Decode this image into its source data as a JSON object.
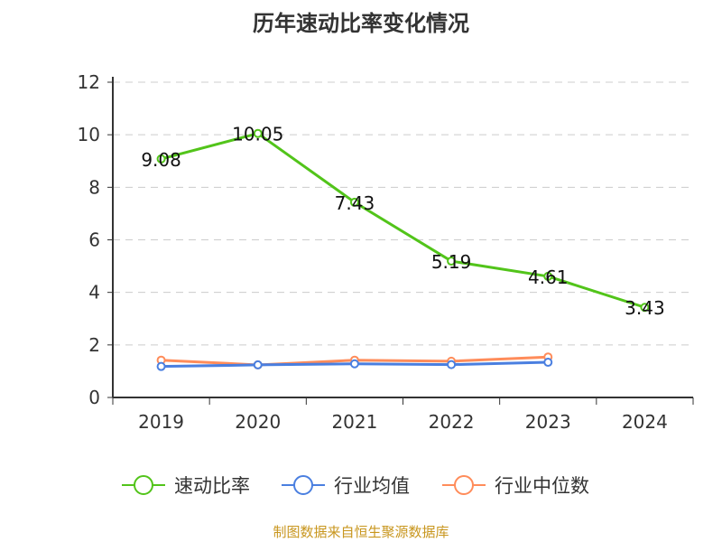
{
  "chart_data": {
    "type": "line",
    "title": "历年速动比率变化情况",
    "categories": [
      "2019",
      "2020",
      "2021",
      "2022",
      "2023",
      "2024"
    ],
    "ylim": [
      0,
      12
    ],
    "yticks": [
      0,
      2,
      4,
      6,
      8,
      10,
      12
    ],
    "grid": true,
    "legend_placement": "bottom",
    "series": [
      {
        "name": "速动比率",
        "color": "#52c41a",
        "values": [
          9.08,
          10.05,
          7.43,
          5.19,
          4.61,
          3.43
        ],
        "labels": [
          "9.08",
          "10.05",
          "7.43",
          "5.19",
          "4.61",
          "3.43"
        ]
      },
      {
        "name": "行业均值",
        "color": "#4a7fe0",
        "values": [
          1.18,
          1.24,
          1.28,
          1.25,
          1.34,
          null
        ]
      },
      {
        "name": "行业中位数",
        "color": "#ff8c5a",
        "values": [
          1.42,
          1.24,
          1.42,
          1.38,
          1.54,
          null
        ]
      }
    ]
  },
  "source": "制图数据来自恒生聚源数据库"
}
